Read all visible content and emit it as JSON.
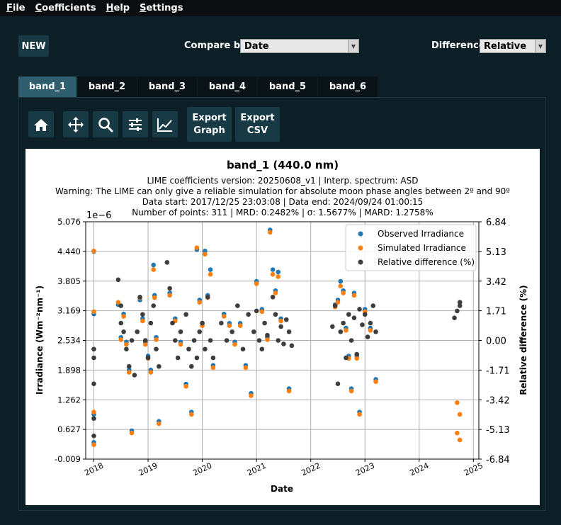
{
  "menu": [
    "File",
    "Coefficients",
    "Help",
    "Settings"
  ],
  "toolbar": {
    "new_label": "NEW",
    "compare_label": "Compare by:",
    "compare_value": "Date",
    "difference_label": "Difference:",
    "difference_value": "Relative"
  },
  "tabs": [
    "band_1",
    "band_2",
    "band_3",
    "band_4",
    "band_5",
    "band_6"
  ],
  "plot_tools": {
    "export_graph": [
      "Export",
      "Graph"
    ],
    "export_csv": [
      "Export",
      "CSV"
    ]
  },
  "chart_data": {
    "type": "scatter",
    "title": "band_1 (440.0 nm)",
    "subtitle_lines": [
      "LIME coefficients version: 20250608_v1 | Interp. spectrum: ASD",
      "Warning: The LIME can only give a reliable simulation for absolute moon phase angles between 2º and 90º",
      "Data start: 2017/12/25 23:03:08 | Data end: 2024/09/24 01:00:15",
      "Number of points: 311 | MRD: 0.2482% | σ: 1.5677% | MARD: 1.2758%"
    ],
    "xlabel": "Date",
    "ylabel_left": "Irradiance (Wm⁻²nm⁻¹)",
    "ylabel_right": "Relative difference (%)",
    "y_exponent_label": "1e−6",
    "xlim": [
      2017.85,
      2025.1
    ],
    "ylim_left": [
      -0.009,
      5.076
    ],
    "ylim_right": [
      -6.84,
      6.84
    ],
    "x_ticks": [
      "2018",
      "2019",
      "2020",
      "2021",
      "2022",
      "2023",
      "2024",
      "2025"
    ],
    "y_ticks_left": [
      "5.076",
      "4.440",
      "3.805",
      "3.169",
      "2.534",
      "1.898",
      "1.262",
      "0.627",
      "-0.009"
    ],
    "y_ticks_right": [
      "6.84",
      "5.13",
      "3.42",
      "1.71",
      "0.00",
      "-1.71",
      "-3.42",
      "-5.13",
      "-6.84"
    ],
    "grid": true,
    "legend_position": "top-right",
    "series": [
      {
        "name": "Observed Irradiance",
        "color": "#1f77b4",
        "axis": "left",
        "points": [
          [
            2018.0,
            4.44
          ],
          [
            2018.0,
            3.1
          ],
          [
            2018.0,
            0.95
          ],
          [
            2018.0,
            0.35
          ],
          [
            2018.45,
            3.3
          ],
          [
            2018.5,
            2.6
          ],
          [
            2018.55,
            3.1
          ],
          [
            2018.6,
            2.5
          ],
          [
            2018.65,
            1.9
          ],
          [
            2018.7,
            0.6
          ],
          [
            2018.85,
            3.4
          ],
          [
            2018.9,
            3.0
          ],
          [
            2018.95,
            2.5
          ],
          [
            2019.0,
            2.2
          ],
          [
            2019.05,
            1.9
          ],
          [
            2019.1,
            4.15
          ],
          [
            2019.12,
            3.5
          ],
          [
            2019.15,
            2.6
          ],
          [
            2019.2,
            0.8
          ],
          [
            2019.4,
            3.55
          ],
          [
            2019.5,
            3.0
          ],
          [
            2019.6,
            2.5
          ],
          [
            2019.7,
            1.6
          ],
          [
            2019.8,
            1.0
          ],
          [
            2019.9,
            4.48
          ],
          [
            2019.95,
            3.4
          ],
          [
            2020.0,
            2.9
          ],
          [
            2020.05,
            4.45
          ],
          [
            2020.1,
            3.5
          ],
          [
            2020.15,
            4.05
          ],
          [
            2020.2,
            2.0
          ],
          [
            2020.4,
            3.1
          ],
          [
            2020.5,
            2.9
          ],
          [
            2020.6,
            2.5
          ],
          [
            2020.7,
            2.9
          ],
          [
            2020.8,
            2.0
          ],
          [
            2020.9,
            1.4
          ],
          [
            2021.0,
            3.8
          ],
          [
            2021.1,
            3.2
          ],
          [
            2021.2,
            2.6
          ],
          [
            2021.25,
            4.9
          ],
          [
            2021.3,
            4.05
          ],
          [
            2021.35,
            3.6
          ],
          [
            2021.4,
            4.0
          ],
          [
            2021.45,
            3.0
          ],
          [
            2021.6,
            1.5
          ],
          [
            2022.45,
            3.3
          ],
          [
            2022.5,
            3.4
          ],
          [
            2022.55,
            3.8
          ],
          [
            2022.6,
            3.6
          ],
          [
            2022.65,
            2.8
          ],
          [
            2022.7,
            2.2
          ],
          [
            2022.75,
            1.5
          ],
          [
            2022.8,
            3.55
          ],
          [
            2022.85,
            2.2
          ],
          [
            2022.9,
            1.0
          ],
          [
            2023.0,
            3.2
          ],
          [
            2023.1,
            2.8
          ],
          [
            2023.2,
            1.7
          ]
        ]
      },
      {
        "name": "Simulated Irradiance",
        "color": "#ff7f0e",
        "axis": "left",
        "points": [
          [
            2018.0,
            4.45
          ],
          [
            2018.0,
            3.15
          ],
          [
            2018.0,
            1.0
          ],
          [
            2018.0,
            0.3
          ],
          [
            2018.45,
            3.35
          ],
          [
            2018.5,
            2.55
          ],
          [
            2018.55,
            3.05
          ],
          [
            2018.6,
            2.45
          ],
          [
            2018.65,
            1.85
          ],
          [
            2018.7,
            0.55
          ],
          [
            2018.85,
            3.45
          ],
          [
            2018.9,
            2.95
          ],
          [
            2018.95,
            2.45
          ],
          [
            2019.0,
            2.15
          ],
          [
            2019.05,
            1.85
          ],
          [
            2019.1,
            4.05
          ],
          [
            2019.12,
            3.45
          ],
          [
            2019.15,
            2.55
          ],
          [
            2019.2,
            0.75
          ],
          [
            2019.4,
            3.5
          ],
          [
            2019.5,
            2.95
          ],
          [
            2019.6,
            2.45
          ],
          [
            2019.7,
            1.55
          ],
          [
            2019.8,
            0.95
          ],
          [
            2019.9,
            4.52
          ],
          [
            2019.95,
            3.35
          ],
          [
            2020.0,
            2.85
          ],
          [
            2020.05,
            4.38
          ],
          [
            2020.1,
            3.45
          ],
          [
            2020.15,
            3.95
          ],
          [
            2020.2,
            1.95
          ],
          [
            2020.4,
            3.05
          ],
          [
            2020.5,
            2.85
          ],
          [
            2020.6,
            2.45
          ],
          [
            2020.7,
            2.85
          ],
          [
            2020.8,
            1.95
          ],
          [
            2020.9,
            1.35
          ],
          [
            2021.0,
            3.75
          ],
          [
            2021.1,
            3.15
          ],
          [
            2021.2,
            2.55
          ],
          [
            2021.25,
            4.85
          ],
          [
            2021.3,
            3.95
          ],
          [
            2021.35,
            3.55
          ],
          [
            2021.4,
            3.9
          ],
          [
            2021.45,
            2.95
          ],
          [
            2021.6,
            1.45
          ],
          [
            2022.45,
            3.25
          ],
          [
            2022.5,
            3.35
          ],
          [
            2022.55,
            3.7
          ],
          [
            2022.6,
            3.55
          ],
          [
            2022.65,
            2.75
          ],
          [
            2022.7,
            2.15
          ],
          [
            2022.75,
            1.45
          ],
          [
            2022.8,
            3.5
          ],
          [
            2022.85,
            2.15
          ],
          [
            2022.9,
            0.95
          ],
          [
            2023.0,
            3.15
          ],
          [
            2023.1,
            2.75
          ],
          [
            2023.2,
            1.65
          ],
          [
            2024.7,
            1.2
          ],
          [
            2024.7,
            0.55
          ],
          [
            2024.75,
            0.95
          ],
          [
            2024.75,
            0.4
          ]
        ]
      },
      {
        "name": "Relative difference (%)",
        "color": "#3d3d3d",
        "axis": "right",
        "points": [
          [
            2018.0,
            -0.5
          ],
          [
            2018.0,
            -1.0
          ],
          [
            2018.0,
            -2.5
          ],
          [
            2018.0,
            -4.5
          ],
          [
            2018.0,
            -5.5
          ],
          [
            2018.45,
            3.5
          ],
          [
            2018.5,
            2.0
          ],
          [
            2018.5,
            1.0
          ],
          [
            2018.55,
            0.5
          ],
          [
            2018.6,
            -0.5
          ],
          [
            2018.65,
            -1.5
          ],
          [
            2018.7,
            0.0
          ],
          [
            2018.75,
            -2.0
          ],
          [
            2018.8,
            0.5
          ],
          [
            2018.85,
            2.5
          ],
          [
            2018.9,
            1.5
          ],
          [
            2018.95,
            0.0
          ],
          [
            2019.0,
            -1.0
          ],
          [
            2019.05,
            1.0
          ],
          [
            2019.1,
            2.0
          ],
          [
            2019.15,
            -0.5
          ],
          [
            2019.2,
            -1.5
          ],
          [
            2019.35,
            4.5
          ],
          [
            2019.4,
            3.0
          ],
          [
            2019.45,
            1.0
          ],
          [
            2019.5,
            0.0
          ],
          [
            2019.55,
            -1.0
          ],
          [
            2019.6,
            0.5
          ],
          [
            2019.7,
            1.5
          ],
          [
            2019.75,
            -0.5
          ],
          [
            2019.8,
            -1.5
          ],
          [
            2019.85,
            0.0
          ],
          [
            2019.9,
            -1.0
          ],
          [
            2019.95,
            0.5
          ],
          [
            2020.0,
            1.0
          ],
          [
            2020.05,
            -0.5
          ],
          [
            2020.1,
            2.5
          ],
          [
            2020.15,
            0.0
          ],
          [
            2020.2,
            -1.0
          ],
          [
            2020.35,
            1.0
          ],
          [
            2020.45,
            0.0
          ],
          [
            2020.55,
            0.5
          ],
          [
            2020.65,
            2.0
          ],
          [
            2020.75,
            -0.5
          ],
          [
            2020.85,
            1.5
          ],
          [
            2020.95,
            0.5
          ],
          [
            2021.0,
            1.7
          ],
          [
            2021.05,
            0.0
          ],
          [
            2021.1,
            -0.5
          ],
          [
            2021.15,
            1.0
          ],
          [
            2021.2,
            0.3
          ],
          [
            2021.3,
            2.5
          ],
          [
            2021.35,
            1.5
          ],
          [
            2021.4,
            0.0
          ],
          [
            2021.45,
            0.8
          ],
          [
            2021.5,
            -0.2
          ],
          [
            2021.55,
            1.2
          ],
          [
            2021.6,
            0.5
          ],
          [
            2021.65,
            -0.3
          ],
          [
            2022.4,
            0.8
          ],
          [
            2022.45,
            2.0
          ],
          [
            2022.5,
            -2.5
          ],
          [
            2022.55,
            0.5
          ],
          [
            2022.6,
            1.0
          ],
          [
            2022.65,
            -1.0
          ],
          [
            2022.7,
            1.5
          ],
          [
            2022.75,
            0.0
          ],
          [
            2022.8,
            1.3
          ],
          [
            2022.85,
            -0.8
          ],
          [
            2022.9,
            1.8
          ],
          [
            2022.95,
            0.9
          ],
          [
            2023.0,
            1.5
          ],
          [
            2023.05,
            0.2
          ],
          [
            2023.1,
            1.0
          ],
          [
            2023.15,
            2.0
          ],
          [
            2023.2,
            0.5
          ],
          [
            2024.65,
            1.3
          ],
          [
            2024.7,
            1.7
          ],
          [
            2024.75,
            2.0
          ],
          [
            2024.75,
            2.2
          ]
        ]
      }
    ]
  }
}
